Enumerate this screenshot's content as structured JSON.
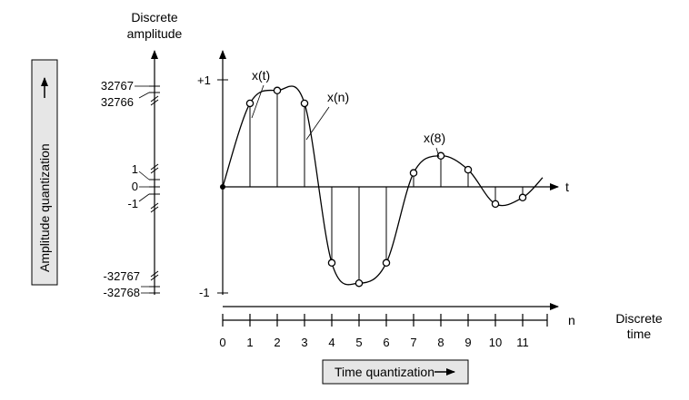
{
  "labels": {
    "discrete_amplitude_1": "Discrete",
    "discrete_amplitude_2": "amplitude",
    "amplitude_quantization": "Amplitude quantization",
    "quant_levels": {
      "l32767": "32767",
      "l32766": "32766",
      "l1": "1",
      "l0": "0",
      "lm1": "-1",
      "lm32767": "-32767",
      "lm32768": "-32768"
    },
    "plus_one": "+1",
    "minus_one": "-1",
    "t_axis": "t",
    "n_axis": "n",
    "x_t": "x(t)",
    "x_n": "x(n)",
    "x_8": "x(8)",
    "discrete_time_1": "Discrete",
    "discrete_time_2": "time",
    "time_quantization": "Time quantization"
  },
  "time_ticks": [
    "0",
    "1",
    "2",
    "3",
    "4",
    "5",
    "6",
    "7",
    "8",
    "9",
    "10",
    "11"
  ],
  "samples": [
    {
      "n": 0,
      "x": 0.0
    },
    {
      "n": 1,
      "x": 0.78
    },
    {
      "n": 2,
      "x": 0.9
    },
    {
      "n": 3,
      "x": 0.78
    },
    {
      "n": 4,
      "x": -0.71
    },
    {
      "n": 5,
      "x": -0.9
    },
    {
      "n": 6,
      "x": -0.71
    },
    {
      "n": 7,
      "x": 0.13
    },
    {
      "n": 8,
      "x": 0.29
    },
    {
      "n": 9,
      "x": 0.16
    },
    {
      "n": 10,
      "x": -0.16
    },
    {
      "n": 11,
      "x": -0.1
    }
  ],
  "colors": {
    "ink": "#000000",
    "label_box_fill": "#e6e6e6"
  }
}
